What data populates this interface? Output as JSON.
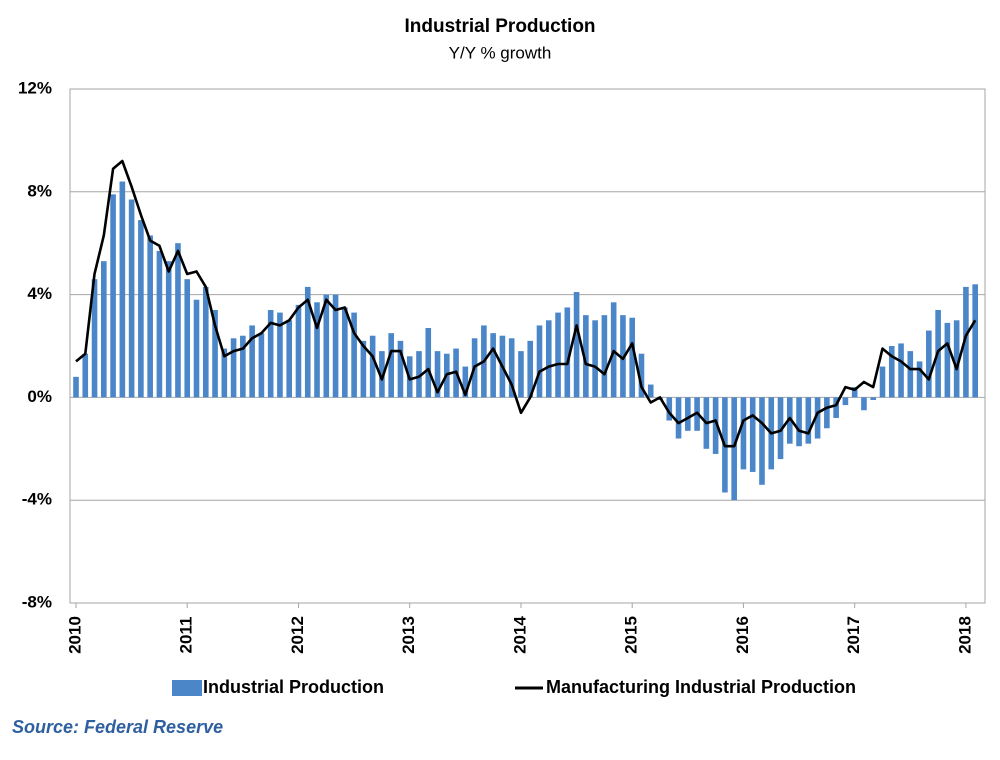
{
  "chart_data": {
    "type": "bar-line",
    "title": "Industrial Production",
    "subtitle": "Y/Y % growth",
    "source": "Source: Federal Reserve",
    "categories": [
      "2010",
      null,
      null,
      null,
      null,
      null,
      null,
      null,
      null,
      null,
      null,
      null,
      "2011",
      null,
      null,
      null,
      null,
      null,
      null,
      null,
      null,
      null,
      null,
      null,
      "2012",
      null,
      null,
      null,
      null,
      null,
      null,
      null,
      null,
      null,
      null,
      null,
      "2013",
      null,
      null,
      null,
      null,
      null,
      null,
      null,
      null,
      null,
      null,
      null,
      "2014",
      null,
      null,
      null,
      null,
      null,
      null,
      null,
      null,
      null,
      null,
      null,
      "2015",
      null,
      null,
      null,
      null,
      null,
      null,
      null,
      null,
      null,
      null,
      null,
      "2016",
      null,
      null,
      null,
      null,
      null,
      null,
      null,
      null,
      null,
      null,
      null,
      "2017",
      null,
      null,
      null,
      null,
      null,
      null,
      null,
      null,
      null,
      null,
      null,
      "2018",
      null
    ],
    "series": [
      {
        "name": "Industrial Production",
        "type": "bar",
        "color": "#4a86c8",
        "values": [
          0.8,
          1.7,
          4.6,
          5.3,
          7.9,
          8.4,
          7.7,
          6.9,
          6.3,
          5.7,
          5.3,
          6.0,
          4.6,
          3.8,
          4.3,
          3.4,
          1.9,
          2.3,
          2.4,
          2.8,
          2.5,
          3.4,
          3.3,
          3.0,
          3.6,
          4.3,
          3.7,
          4.0,
          4.0,
          3.5,
          3.3,
          2.2,
          2.4,
          1.8,
          2.5,
          2.2,
          1.6,
          1.8,
          2.7,
          1.8,
          1.7,
          1.9,
          1.2,
          2.3,
          2.8,
          2.5,
          2.4,
          2.3,
          1.8,
          2.2,
          2.8,
          3.0,
          3.3,
          3.5,
          4.1,
          3.2,
          3.0,
          3.2,
          3.7,
          3.2,
          3.1,
          1.7,
          0.5,
          -0.1,
          -0.9,
          -1.6,
          -1.3,
          -1.3,
          -2.0,
          -2.2,
          -3.7,
          -4.0,
          -2.8,
          -2.9,
          -3.4,
          -2.8,
          -2.4,
          -1.8,
          -1.9,
          -1.8,
          -1.6,
          -1.2,
          -0.8,
          -0.3,
          0.4,
          -0.5,
          -0.1,
          1.2,
          2.0,
          2.1,
          1.8,
          1.4,
          2.6,
          3.4,
          2.9,
          3.0,
          4.3,
          4.4
        ]
      },
      {
        "name": "Manufacturing Industrial Production",
        "type": "line",
        "color": "#000000",
        "values": [
          1.4,
          1.7,
          4.8,
          6.3,
          8.9,
          9.2,
          8.2,
          7.1,
          6.1,
          5.9,
          4.9,
          5.7,
          4.8,
          4.9,
          4.3,
          2.8,
          1.6,
          1.8,
          1.9,
          2.3,
          2.5,
          2.9,
          2.8,
          3.0,
          3.5,
          3.8,
          2.7,
          3.8,
          3.4,
          3.5,
          2.5,
          2.0,
          1.6,
          0.7,
          1.8,
          1.8,
          0.7,
          0.8,
          1.1,
          0.2,
          0.9,
          1.0,
          0.1,
          1.2,
          1.4,
          1.9,
          1.2,
          0.5,
          -0.6,
          0.0,
          1.0,
          1.2,
          1.3,
          1.3,
          2.8,
          1.3,
          1.2,
          0.9,
          1.8,
          1.5,
          2.1,
          0.4,
          -0.2,
          0.0,
          -0.6,
          -1.0,
          -0.8,
          -0.6,
          -1.0,
          -0.9,
          -1.9,
          -1.9,
          -0.9,
          -0.7,
          -1.0,
          -1.4,
          -1.3,
          -0.8,
          -1.3,
          -1.4,
          -0.6,
          -0.4,
          -0.3,
          0.4,
          0.3,
          0.6,
          0.4,
          1.9,
          1.6,
          1.4,
          1.1,
          1.1,
          0.7,
          1.8,
          2.1,
          1.1,
          2.4,
          3.0
        ]
      }
    ],
    "ylim": [
      -8,
      12
    ],
    "yticks": [
      {
        "value": -8,
        "label": "-8%"
      },
      {
        "value": -4,
        "label": "-4%"
      },
      {
        "value": 0,
        "label": "0%"
      },
      {
        "value": 4,
        "label": "4%"
      },
      {
        "value": 8,
        "label": "8%"
      },
      {
        "value": 12,
        "label": "12%"
      }
    ],
    "grid": true,
    "legend": "bottom"
  }
}
